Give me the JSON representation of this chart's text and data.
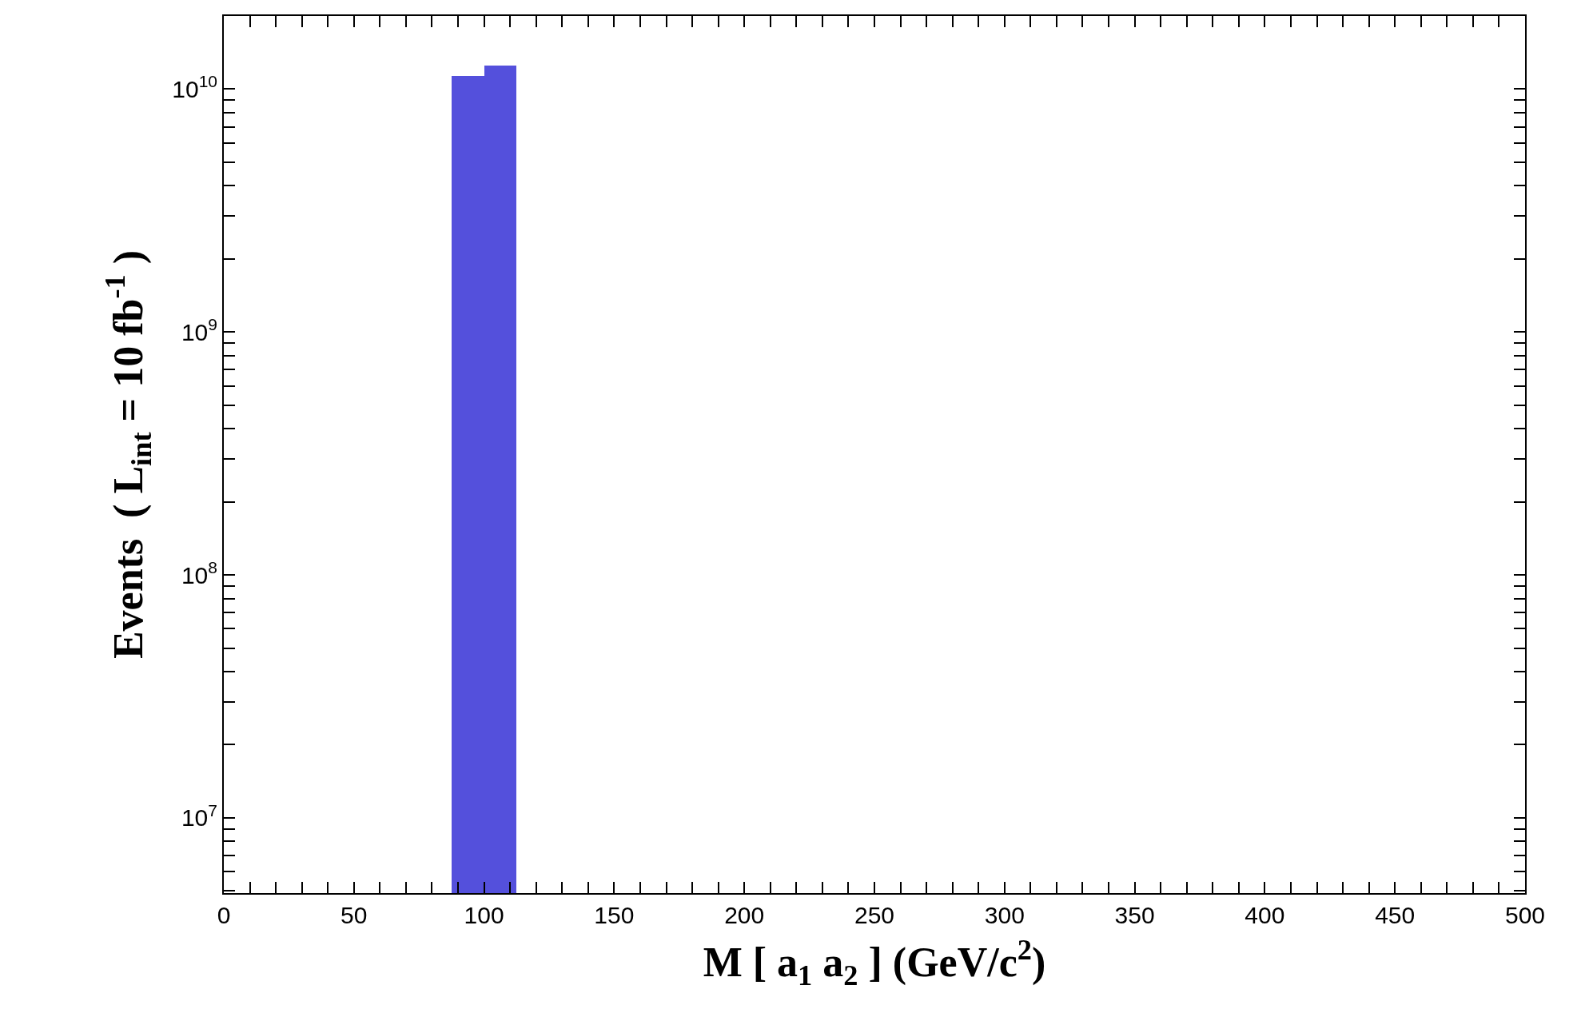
{
  "chart_data": {
    "type": "histogram",
    "xlabel": "M [ a$_{1}$ a$_{2}$ ] (GeV/c$^{2}$)",
    "ylabel": "Events  ( L$_{int}$ = 10 fb$^{-1}$ )",
    "bins": [
      87.5,
      100,
      112.5
    ],
    "values": [
      11300000000,
      12500000000
    ],
    "color": "#5450dc",
    "log": true,
    "grid": false,
    "xlim": [
      0,
      500
    ],
    "xticks": [
      0,
      {
        "value": 10,
        "label": null
      },
      {
        "value": 20,
        "label": null
      },
      {
        "value": 30,
        "label": null
      },
      {
        "value": 40,
        "label": null
      },
      50,
      {
        "value": 60,
        "label": null
      },
      {
        "value": 70,
        "label": null
      },
      {
        "value": 80,
        "label": null
      },
      {
        "value": 90,
        "label": null
      },
      100,
      {
        "value": 110,
        "label": null
      },
      {
        "value": 120,
        "label": null
      },
      {
        "value": 130,
        "label": null
      },
      {
        "value": 140,
        "label": null
      },
      150,
      {
        "value": 160,
        "label": null
      },
      {
        "value": 170,
        "label": null
      },
      {
        "value": 180,
        "label": null
      },
      {
        "value": 190,
        "label": null
      },
      200,
      {
        "value": 210,
        "label": null
      },
      {
        "value": 220,
        "label": null
      },
      {
        "value": 230,
        "label": null
      },
      {
        "value": 240,
        "label": null
      },
      250,
      {
        "value": 260,
        "label": null
      },
      {
        "value": 270,
        "label": null
      },
      {
        "value": 280,
        "label": null
      },
      {
        "value": 290,
        "label": null
      },
      300,
      {
        "value": 310,
        "label": null
      },
      {
        "value": 320,
        "label": null
      },
      {
        "value": 330,
        "label": null
      },
      {
        "value": 340,
        "label": null
      },
      350,
      {
        "value": 360,
        "label": null
      },
      {
        "value": 370,
        "label": null
      },
      {
        "value": 380,
        "label": null
      },
      {
        "value": 390,
        "label": null
      },
      400,
      {
        "value": 410,
        "label": null
      },
      {
        "value": 420,
        "label": null
      },
      {
        "value": 430,
        "label": null
      },
      {
        "value": 440,
        "label": null
      },
      450,
      {
        "value": 460,
        "label": null
      },
      {
        "value": 470,
        "label": null
      },
      {
        "value": 480,
        "label": null
      },
      {
        "value": 490,
        "label": null
      },
      500
    ],
    "ylim": [
      4900000,
      20000000000
    ],
    "yticks": [
      {
        "value": 5000000,
        "label": null
      },
      {
        "value": 6000000,
        "label": null
      },
      {
        "value": 7000000,
        "label": null
      },
      {
        "value": 8000000,
        "label": null
      },
      {
        "value": 9000000,
        "label": null
      },
      {
        "value": 10000000,
        "label": "10$^{7}$"
      },
      {
        "value": 20000000,
        "label": null
      },
      {
        "value": 30000000,
        "label": null
      },
      {
        "value": 40000000,
        "label": null
      },
      {
        "value": 50000000,
        "label": null
      },
      {
        "value": 60000000,
        "label": null
      },
      {
        "value": 70000000,
        "label": null
      },
      {
        "value": 80000000,
        "label": null
      },
      {
        "value": 90000000,
        "label": null
      },
      {
        "value": 100000000,
        "label": "10$^{8}$"
      },
      {
        "value": 200000000,
        "label": null
      },
      {
        "value": 300000000,
        "label": null
      },
      {
        "value": 400000000,
        "label": null
      },
      {
        "value": 500000000,
        "label": null
      },
      {
        "value": 600000000,
        "label": null
      },
      {
        "value": 700000000,
        "label": null
      },
      {
        "value": 800000000,
        "label": null
      },
      {
        "value": 900000000,
        "label": null
      },
      {
        "value": 1000000000,
        "label": "10$^{9}$"
      },
      {
        "value": 2000000000,
        "label": null
      },
      {
        "value": 3000000000,
        "label": null
      },
      {
        "value": 4000000000,
        "label": null
      },
      {
        "value": 5000000000,
        "label": null
      },
      {
        "value": 6000000000,
        "label": null
      },
      {
        "value": 7000000000,
        "label": null
      },
      {
        "value": 8000000000,
        "label": null
      },
      {
        "value": 9000000000,
        "label": null
      },
      {
        "value": 10000000000,
        "label": "10$^{10}$"
      },
      {
        "value": 20000000000,
        "label": null
      }
    ]
  }
}
